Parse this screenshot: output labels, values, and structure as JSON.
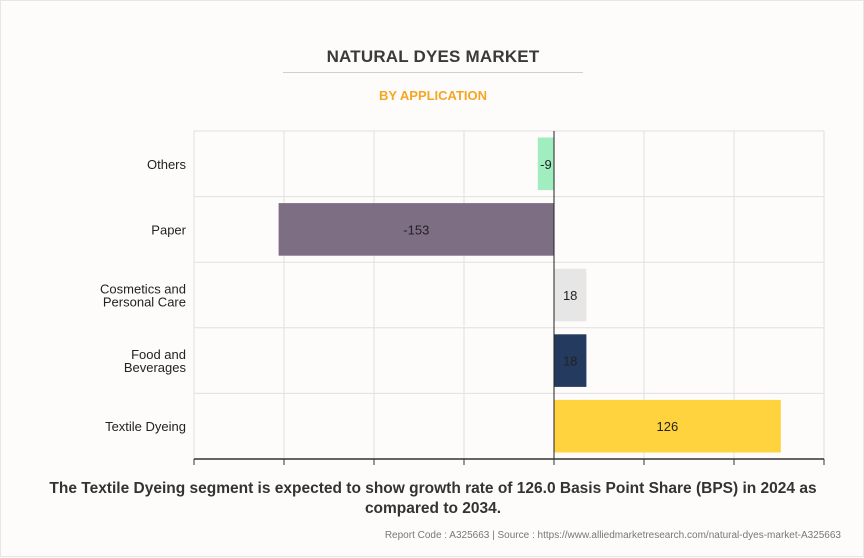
{
  "chart_data": {
    "type": "bar",
    "orientation": "horizontal",
    "title": "NATURAL DYES MARKET",
    "subtitle": "BY APPLICATION",
    "categories": [
      "Others",
      "Paper",
      "Cosmetics and Personal Care",
      "Food and Beverages",
      "Textile Dyeing"
    ],
    "category_lines": [
      [
        "Others"
      ],
      [
        "Paper"
      ],
      [
        "Cosmetics and",
        "Personal Care"
      ],
      [
        "Food and",
        "Beverages"
      ],
      [
        "Textile Dyeing"
      ]
    ],
    "values": [
      -9,
      -153,
      18,
      18,
      126
    ],
    "data_labels": [
      "-9",
      "-153",
      "18",
      "18",
      "126"
    ],
    "colors": [
      "#a0eebf",
      "#7d6e84",
      "#e6e6e6",
      "#243a5e",
      "#ffd33d"
    ],
    "xlim": [
      -200,
      150
    ],
    "xticks": [
      -200,
      -150,
      -100,
      -50,
      0,
      50,
      100,
      150
    ],
    "xlabel": "",
    "ylabel": "",
    "grid": true,
    "legend": "none"
  },
  "caption": "The Textile Dyeing segment is expected to show growth rate of 126.0 Basis Point Share (BPS) in 2024 as compared to 2034.",
  "source": "Report Code : A325663  |  Source : https://www.alliedmarketresearch.com/natural-dyes-market-A325663"
}
